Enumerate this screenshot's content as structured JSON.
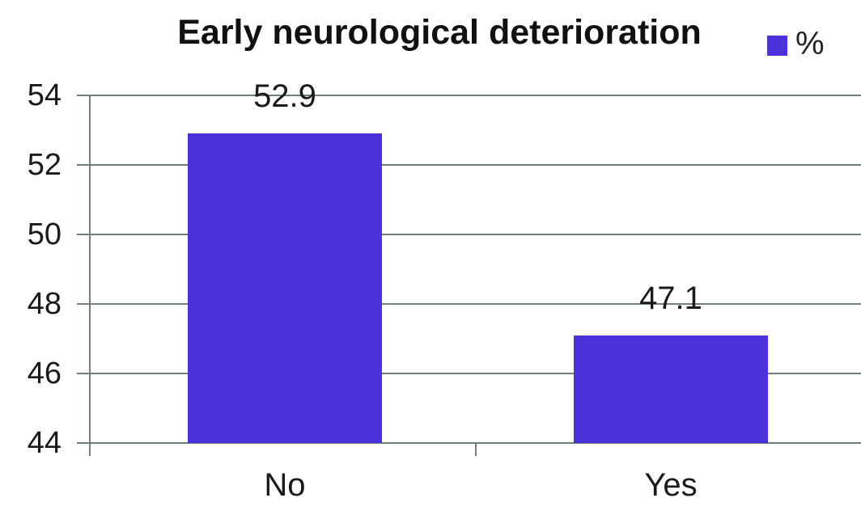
{
  "chart_data": {
    "type": "bar",
    "title": "Early neurological deterioration",
    "legend_label": "%",
    "legend_position": "top-right",
    "categories": [
      "No",
      "Yes"
    ],
    "series": [
      {
        "name": "%",
        "values": [
          52.9,
          47.1
        ]
      }
    ],
    "data_labels": [
      "52.9",
      "47.1"
    ],
    "xlabel": "",
    "ylabel": "",
    "ylim": [
      44,
      54
    ],
    "yticks": [
      54,
      52,
      50,
      48,
      46,
      44
    ],
    "grid": true,
    "colors": {
      "bar": "#4A33DC",
      "gridline": "#6F7F7D",
      "axis": "#6F7F7D",
      "text": "#1A1A1A"
    }
  }
}
